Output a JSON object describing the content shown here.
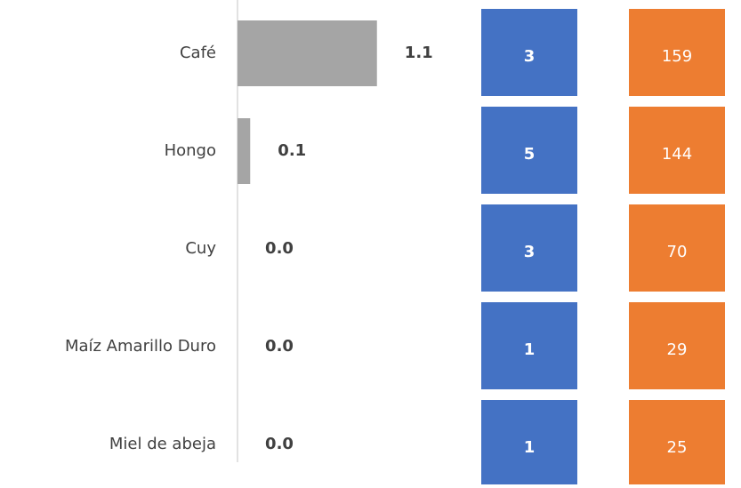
{
  "chart_data": {
    "type": "bar",
    "categories": [
      "Café",
      "Hongo",
      "Cuy",
      "Maíz Amarillo Duro",
      "Miel de abeja"
    ],
    "values": [
      1.1,
      0.1,
      0.0,
      0.0,
      0.0
    ],
    "value_labels": [
      "1.1",
      "0.1",
      "0.0",
      "0.0",
      "0.0"
    ],
    "color": "#a5a5a5",
    "xlim": [
      0,
      1.2
    ],
    "columns": [
      {
        "color": "#4472c4",
        "values": [
          3,
          5,
          3,
          1,
          1
        ]
      },
      {
        "color": "#ed7d31",
        "values": [
          159,
          144,
          70,
          29,
          25
        ]
      }
    ]
  }
}
